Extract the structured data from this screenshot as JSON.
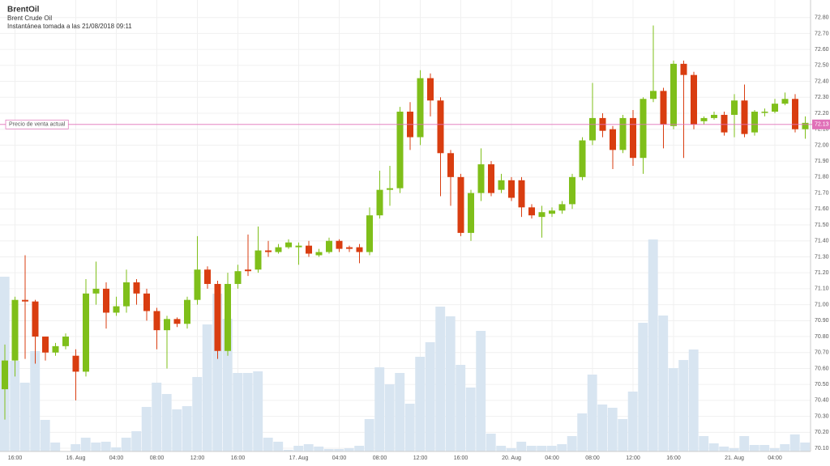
{
  "header": {
    "title": "BrentOil",
    "subtitle": "Brent Crude Oil",
    "snapshot": "Instantánea tomada a las 21/08/2018 09:11"
  },
  "chart_data": {
    "type": "candlestick",
    "up_color": "#7fbf1a",
    "down_color": "#d93d10",
    "volume_color": "#d8e5f1",
    "grid": true,
    "categories": [
      null,
      "16:00",
      null,
      null,
      null,
      null,
      null,
      "16. Aug",
      null,
      null,
      null,
      "04:00",
      null,
      null,
      null,
      "08:00",
      null,
      null,
      null,
      "12:00",
      null,
      null,
      null,
      "16:00",
      null,
      null,
      null,
      null,
      null,
      "17. Aug",
      null,
      null,
      null,
      "04:00",
      null,
      null,
      null,
      "08:00",
      null,
      null,
      null,
      "12:00",
      null,
      null,
      null,
      "16:00",
      null,
      null,
      null,
      null,
      "20. Aug",
      null,
      null,
      null,
      "04:00",
      null,
      null,
      null,
      "08:00",
      null,
      null,
      null,
      "12:00",
      null,
      null,
      null,
      "16:00",
      null,
      null,
      null,
      null,
      null,
      "21. Aug",
      null,
      null,
      null,
      "04:00",
      null,
      null,
      null
    ],
    "open": [
      70.47,
      70.65,
      71.03,
      71.02,
      70.8,
      70.7,
      70.74,
      70.68,
      70.58,
      71.07,
      71.1,
      70.95,
      70.99,
      71.14,
      71.07,
      70.96,
      70.84,
      70.91,
      70.88,
      71.03,
      71.22,
      71.13,
      70.71,
      71.13,
      71.22,
      71.22,
      71.34,
      71.33,
      71.36,
      71.36,
      71.37,
      71.31,
      71.33,
      71.4,
      71.36,
      71.36,
      71.33,
      71.56,
      71.72,
      71.73,
      72.21,
      72.05,
      72.42,
      72.28,
      71.95,
      71.8,
      71.45,
      71.7,
      71.88,
      71.72,
      71.78,
      71.78,
      71.61,
      71.55,
      71.57,
      71.59,
      71.63,
      71.8,
      72.03,
      72.17,
      72.1,
      71.97,
      72.17,
      71.92,
      72.29,
      72.34,
      72.12,
      72.51,
      72.44,
      72.15,
      72.17,
      72.19,
      72.19,
      72.28,
      72.08,
      72.21,
      72.21,
      72.26,
      72.29,
      72.1
    ],
    "high": [
      70.75,
      71.05,
      71.31,
      71.03,
      70.8,
      70.76,
      70.82,
      70.72,
      71.16,
      71.27,
      71.14,
      71.05,
      71.22,
      71.16,
      71.1,
      70.98,
      70.93,
      70.92,
      71.05,
      71.43,
      71.24,
      71.15,
      71.2,
      71.25,
      71.44,
      71.49,
      71.4,
      71.38,
      71.41,
      71.39,
      71.4,
      71.35,
      71.42,
      71.41,
      71.37,
      71.38,
      71.61,
      71.84,
      71.87,
      72.24,
      72.27,
      72.47,
      72.45,
      72.3,
      71.97,
      71.82,
      71.72,
      71.98,
      71.9,
      71.82,
      71.8,
      71.8,
      71.63,
      71.62,
      71.61,
      71.65,
      71.82,
      72.05,
      72.39,
      72.2,
      72.12,
      72.19,
      72.22,
      72.3,
      72.75,
      72.36,
      72.53,
      72.53,
      72.46,
      72.18,
      72.21,
      72.21,
      72.32,
      72.38,
      72.22,
      72.23,
      72.29,
      72.33,
      72.32,
      72.18
    ],
    "low": [
      70.28,
      70.55,
      70.66,
      70.63,
      70.65,
      70.68,
      70.72,
      70.4,
      70.55,
      71.0,
      70.85,
      70.93,
      70.95,
      71.0,
      70.9,
      70.72,
      70.6,
      70.86,
      70.85,
      71.0,
      71.1,
      70.66,
      70.68,
      71.1,
      71.18,
      71.2,
      71.3,
      71.32,
      71.35,
      71.25,
      71.3,
      71.3,
      71.32,
      71.33,
      71.33,
      71.26,
      71.31,
      71.54,
      71.62,
      71.7,
      71.97,
      72.0,
      72.18,
      71.68,
      71.62,
      71.43,
      71.4,
      71.65,
      71.68,
      71.7,
      71.65,
      71.55,
      71.54,
      71.42,
      71.55,
      71.57,
      71.6,
      71.78,
      72.0,
      72.05,
      71.85,
      71.95,
      71.87,
      71.82,
      72.27,
      71.98,
      72.1,
      71.92,
      72.1,
      72.13,
      72.16,
      72.06,
      72.05,
      72.05,
      72.06,
      72.18,
      72.2,
      72.25,
      72.08,
      72.04
    ],
    "close": [
      70.65,
      71.03,
      71.02,
      70.8,
      70.7,
      70.74,
      70.8,
      70.58,
      71.07,
      71.1,
      70.95,
      70.99,
      71.14,
      71.07,
      70.96,
      70.84,
      70.91,
      70.88,
      71.03,
      71.22,
      71.13,
      70.71,
      71.13,
      71.21,
      71.21,
      71.34,
      71.33,
      71.36,
      71.39,
      71.37,
      71.32,
      71.33,
      71.4,
      71.35,
      71.35,
      71.33,
      71.56,
      71.72,
      71.73,
      72.21,
      72.05,
      72.42,
      72.28,
      71.95,
      71.8,
      71.45,
      71.7,
      71.88,
      71.7,
      71.78,
      71.67,
      71.61,
      71.56,
      71.58,
      71.59,
      71.63,
      71.8,
      72.03,
      72.17,
      72.09,
      71.97,
      72.17,
      71.92,
      72.29,
      72.34,
      72.13,
      72.51,
      72.44,
      72.13,
      72.17,
      72.19,
      72.08,
      72.28,
      72.07,
      72.21,
      72.21,
      72.26,
      72.29,
      72.1,
      72.14
    ],
    "volume": [
      216,
      112,
      85,
      124,
      39,
      11,
      0,
      9,
      17,
      11,
      12,
      5,
      17,
      25,
      55,
      85,
      71,
      52,
      56,
      92,
      157,
      195,
      164,
      97,
      97,
      99,
      17,
      12,
      2,
      7,
      9,
      6,
      3,
      3,
      4,
      7,
      40,
      104,
      83,
      97,
      59,
      117,
      135,
      179,
      167,
      107,
      79,
      149,
      22,
      7,
      4,
      12,
      7,
      7,
      7,
      9,
      19,
      47,
      95,
      58,
      54,
      40,
      74,
      159,
      262,
      168,
      103,
      113,
      126,
      19,
      10,
      6,
      4,
      19,
      8,
      8,
      4,
      9,
      21,
      11
    ],
    "ylim": [
      70.08,
      72.91
    ],
    "yticks": [
      {
        "value": 70.1,
        "label": "70.10"
      },
      {
        "value": 70.2,
        "label": "70.20"
      },
      {
        "value": 70.3,
        "label": "70.30"
      },
      {
        "value": 70.4,
        "label": "70.40"
      },
      {
        "value": 70.5,
        "label": "70.50"
      },
      {
        "value": 70.6,
        "label": "70.60"
      },
      {
        "value": 70.7,
        "label": "70.70"
      },
      {
        "value": 70.8,
        "label": "70.80"
      },
      {
        "value": 70.9,
        "label": "70.90"
      },
      {
        "value": 71.0,
        "label": "71.00"
      },
      {
        "value": 71.1,
        "label": "71.10"
      },
      {
        "value": 71.2,
        "label": "71.20"
      },
      {
        "value": 71.3,
        "label": "71.30"
      },
      {
        "value": 71.4,
        "label": "71.40"
      },
      {
        "value": 71.5,
        "label": "71.50"
      },
      {
        "value": 71.6,
        "label": "71.60"
      },
      {
        "value": 71.7,
        "label": "71.70"
      },
      {
        "value": 71.8,
        "label": "71.80"
      },
      {
        "value": 71.9,
        "label": "71.90"
      },
      {
        "value": 72.0,
        "label": "72.00"
      },
      {
        "value": 72.1,
        "label": "72.10"
      },
      {
        "value": 72.2,
        "label": "72.20"
      },
      {
        "value": 72.3,
        "label": "72.30"
      },
      {
        "value": 72.4,
        "label": "72.40"
      },
      {
        "value": 72.5,
        "label": "72.50"
      },
      {
        "value": 72.6,
        "label": "72.60"
      },
      {
        "value": 72.7,
        "label": "72.70"
      },
      {
        "value": 72.8,
        "label": "72.80"
      }
    ],
    "price_line": {
      "label": "Precio de venta actual",
      "value": 72.13,
      "color": "#e070b8"
    }
  }
}
